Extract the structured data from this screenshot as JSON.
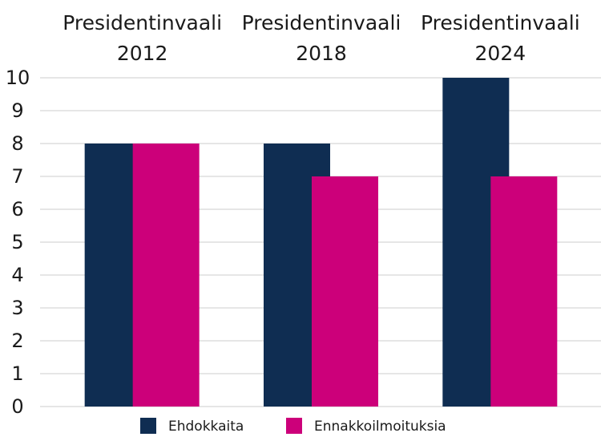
{
  "chart_data": {
    "type": "bar",
    "categories": [
      "Presidentinvaali 2012",
      "Presidentinvaali 2018",
      "Presidentinvaali 2024"
    ],
    "series": [
      {
        "name": "Ehdokkaita",
        "color": "#0f2d52",
        "values": [
          8,
          8,
          10
        ]
      },
      {
        "name": "Ennakkoilmoituksia",
        "color": "#cc007a",
        "values": [
          8,
          7,
          7
        ]
      }
    ],
    "ylim": [
      0,
      10
    ],
    "yticks": [
      0,
      1,
      2,
      3,
      4,
      5,
      6,
      7,
      8,
      9,
      10
    ],
    "grid": true,
    "legend": "bottom"
  }
}
